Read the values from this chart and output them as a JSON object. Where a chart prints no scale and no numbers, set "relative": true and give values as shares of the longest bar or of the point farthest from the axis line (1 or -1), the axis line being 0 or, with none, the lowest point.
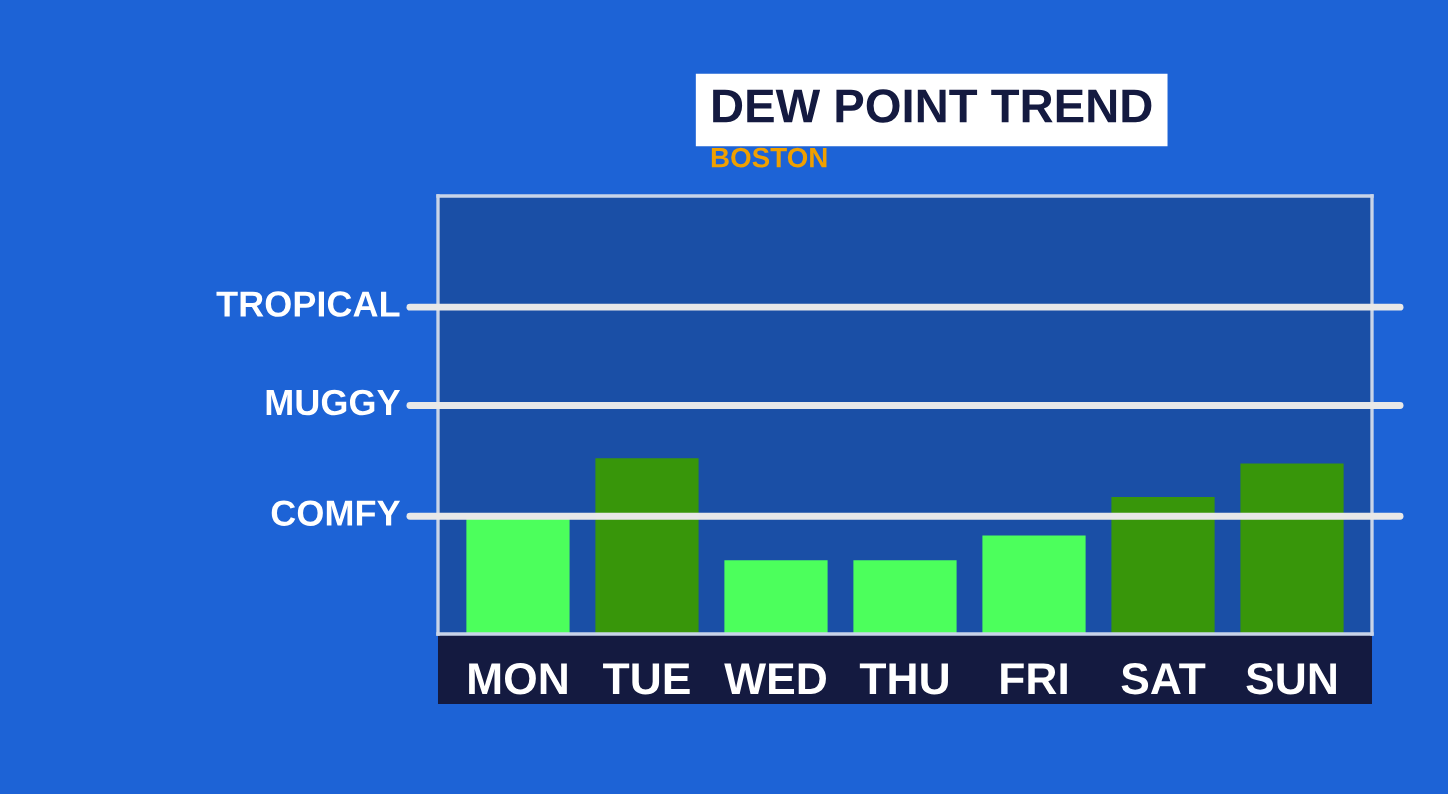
{
  "chart_data": {
    "type": "bar",
    "title": "DEW POINT TREND",
    "subtitle": "BOSTON",
    "relative": true,
    "categories": [
      "MON",
      "TUE",
      "WED",
      "THU",
      "FRI",
      "SAT",
      "SUN"
    ],
    "values": [
      0.66,
      1,
      0.42,
      0.42,
      0.56,
      0.78,
      0.97
    ],
    "colors": [
      "#4cff5c",
      "#38960a",
      "#4cff5c",
      "#4cff5c",
      "#4cff5c",
      "#38960a",
      "#38960a"
    ],
    "ref_lines": [
      {
        "axis": "y",
        "value": 0.67,
        "label": "COMFY",
        "color": "#e8e8e8"
      },
      {
        "axis": "y",
        "value": 1.3,
        "label": "MUGGY",
        "color": "#e8e8e8"
      },
      {
        "axis": "y",
        "value": 1.86,
        "label": "TROPICAL",
        "color": "#e8e8e8"
      }
    ],
    "grid": false,
    "legend": false
  }
}
